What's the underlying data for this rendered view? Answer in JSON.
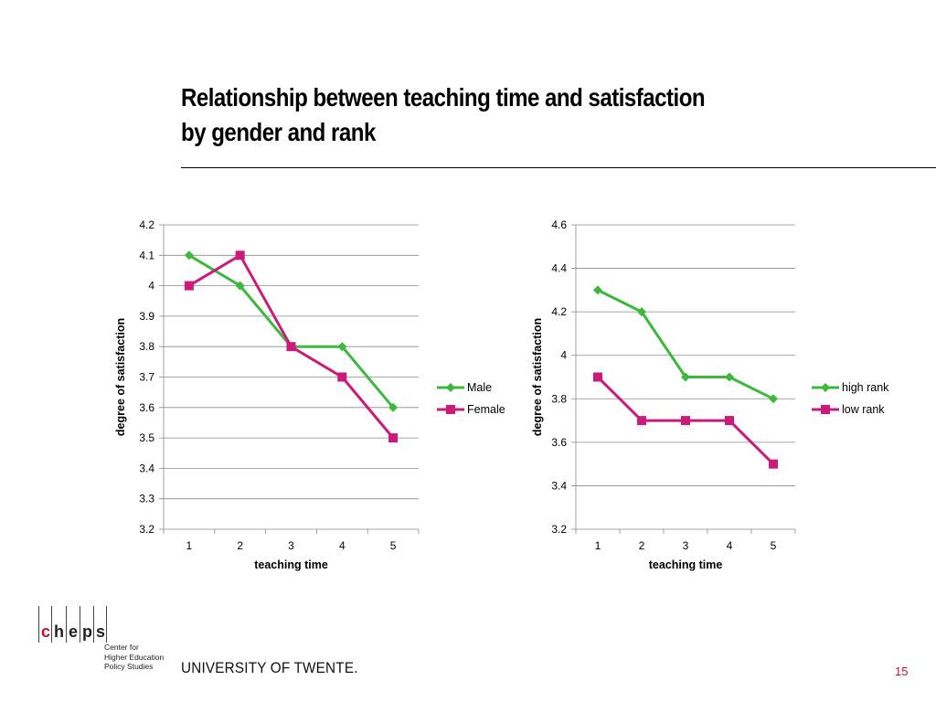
{
  "slide": {
    "title_line1": "Relationship between teaching time and satisfaction",
    "title_line2": "by gender and rank",
    "university": "UNIVERSITY OF TWENTE.",
    "page_number": "15",
    "logo": {
      "letters": [
        "c",
        "h",
        "e",
        "p",
        "s"
      ],
      "subtitle": [
        "Center for",
        "Higher Education",
        "Policy Studies"
      ],
      "accent_color": "#c8102e"
    }
  },
  "chart_data": [
    {
      "type": "line",
      "title": "",
      "xlabel": "teaching time",
      "ylabel": "degree of satisfaction",
      "categories": [
        "1",
        "2",
        "3",
        "4",
        "5"
      ],
      "ylim": [
        3.2,
        4.2
      ],
      "yticks": [
        "3.2",
        "3.3",
        "3.4",
        "3.5",
        "3.6",
        "3.7",
        "3.8",
        "3.9",
        "4",
        "4.1",
        "4.2"
      ],
      "grid": true,
      "legend_position": "right",
      "series": [
        {
          "name": "Male",
          "values": [
            4.1,
            4.0,
            3.8,
            3.8,
            3.6
          ],
          "color": "#3cb83c",
          "marker": "diamond"
        },
        {
          "name": "Female",
          "values": [
            4.0,
            4.1,
            3.8,
            3.7,
            3.5
          ],
          "color": "#cc1a7a",
          "marker": "square"
        }
      ]
    },
    {
      "type": "line",
      "title": "",
      "xlabel": "teaching time",
      "ylabel": "degree of satisfaction",
      "categories": [
        "1",
        "2",
        "3",
        "4",
        "5"
      ],
      "ylim": [
        3.2,
        4.6
      ],
      "yticks": [
        "3.2",
        "3.4",
        "3.6",
        "3.8",
        "4",
        "4.2",
        "4.4",
        "4.6"
      ],
      "grid": true,
      "legend_position": "right",
      "series": [
        {
          "name": "high rank",
          "values": [
            4.3,
            4.2,
            3.9,
            3.9,
            3.8
          ],
          "color": "#3cb83c",
          "marker": "diamond"
        },
        {
          "name": "low rank",
          "values": [
            3.9,
            3.7,
            3.7,
            3.7,
            3.5
          ],
          "color": "#cc1a7a",
          "marker": "square"
        }
      ]
    }
  ]
}
